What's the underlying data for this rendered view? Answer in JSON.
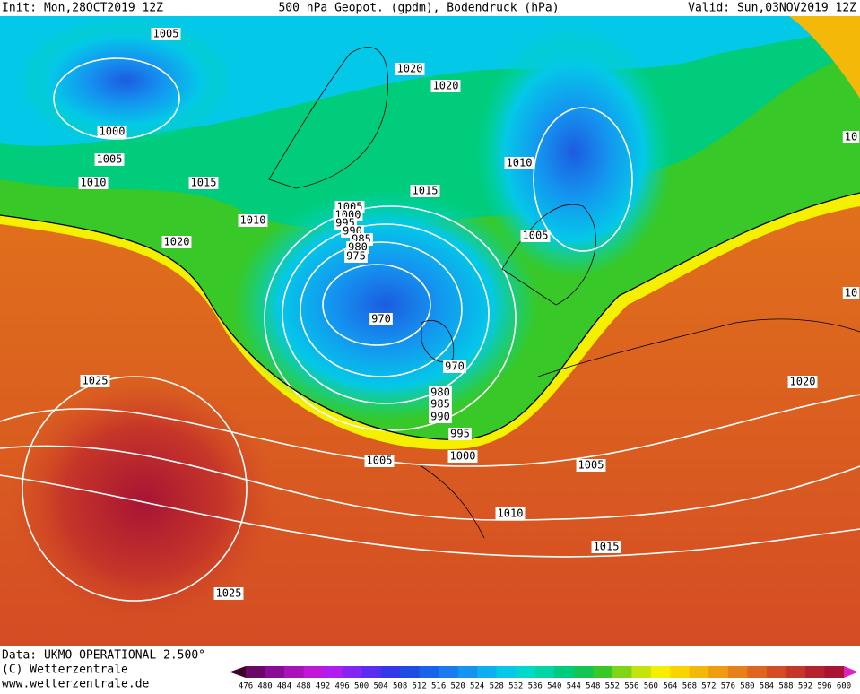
{
  "header": {
    "init": "Init: Mon,28OCT2019 12Z",
    "title": "500 hPa Geopot. (gpdm), Bodendruck (hPa)",
    "valid": "Valid: Sun,03NOV2019 12Z"
  },
  "footer": {
    "data": "Data: UKMO OPERATIONAL 2.500°",
    "copyright": "(C) Wetterzentrale",
    "url": "www.wetterzentrale.de"
  },
  "isobars": {
    "labels": [
      "1005",
      "1000",
      "1005",
      "1010",
      "1015",
      "1010",
      "1020",
      "1020",
      "1020",
      "1010",
      "1015",
      "1005",
      "1005",
      "1000",
      "995",
      "990",
      "985",
      "980",
      "975",
      "970",
      "970",
      "980",
      "985",
      "990",
      "995",
      "1005",
      "1000",
      "1005",
      "1010",
      "1015",
      "1025",
      "1025",
      "1020",
      "10",
      "10"
    ]
  },
  "legend": {
    "levels": [
      476,
      480,
      484,
      488,
      492,
      496,
      500,
      504,
      508,
      512,
      516,
      520,
      524,
      528,
      532,
      536,
      540,
      544,
      548,
      552,
      556,
      560,
      564,
      568,
      572,
      576,
      580,
      584,
      588,
      592,
      596,
      600
    ],
    "colors": [
      "#40002c",
      "#6a0a66",
      "#8a0c96",
      "#a812b8",
      "#c016d8",
      "#b01cf0",
      "#8424f0",
      "#5a2cf0",
      "#3438e8",
      "#1c4ce0",
      "#1864e8",
      "#187cf0",
      "#1494f0",
      "#0cb0f0",
      "#04c8e8",
      "#00d8cc",
      "#00d6a4",
      "#00cc7c",
      "#14c454",
      "#38c828",
      "#80d418",
      "#c4e40c",
      "#f4f000",
      "#f8d400",
      "#f4b808",
      "#ee9c10",
      "#e68018",
      "#de6420",
      "#d44c24",
      "#c63628",
      "#b4222e",
      "#a81434",
      "#e020c0"
    ]
  }
}
